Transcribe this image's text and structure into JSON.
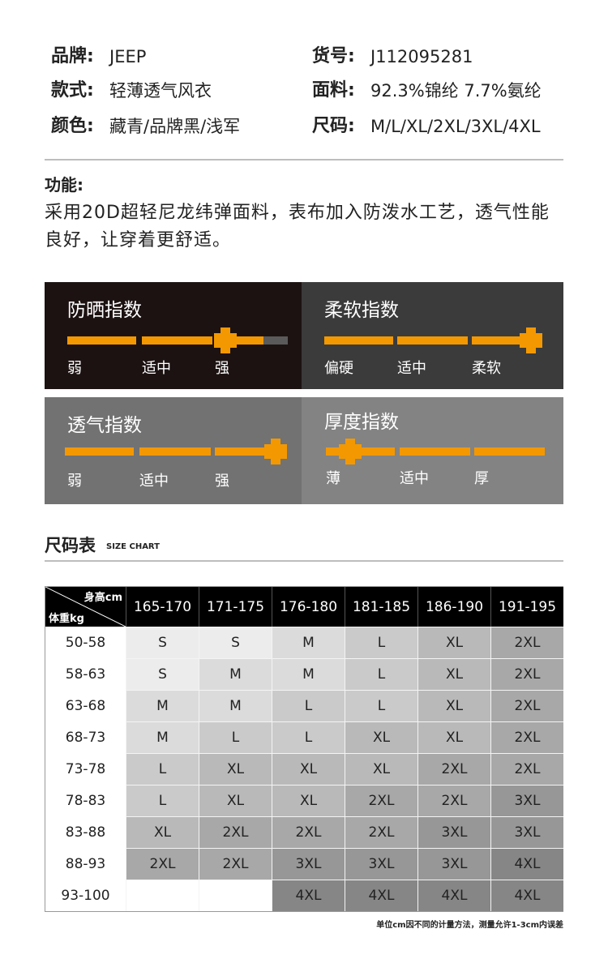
{
  "specs": [
    {
      "label": "品牌:",
      "value": "JEEP"
    },
    {
      "label": "款式:",
      "value": "轻薄透气风衣"
    },
    {
      "label": "颜色:",
      "value": "藏青/品牌黑/浅军"
    },
    {
      "label": "货号:",
      "value": "J112095281"
    },
    {
      "label": "面料:",
      "value": "92.3%锦纶  7.7%氨纶"
    },
    {
      "label": "尺码:",
      "value": "M/L/XL/2XL/3XL/4XL"
    }
  ],
  "function": {
    "title": "功能:",
    "text": "采用20D超轻尼龙纬弹面料，表布加入防泼水工艺，透气性能良好，让穿着更舒适。"
  },
  "indices": [
    {
      "title": "防晒指数",
      "labels": [
        "弱",
        "适中",
        "强"
      ]
    },
    {
      "title": "柔软指数",
      "labels": [
        "偏硬",
        "适中",
        "柔软"
      ]
    },
    {
      "title": "透气指数",
      "labels": [
        "弱",
        "适中",
        "强"
      ]
    },
    {
      "title": "厚度指数",
      "labels": [
        "薄",
        "适中",
        "厚"
      ]
    }
  ],
  "size_chart": {
    "title": "尺码表",
    "subtitle": "SIZE CHART",
    "corner": {
      "height": "身高cm",
      "weight": "体重kg"
    },
    "columns": [
      "165-170",
      "171-175",
      "176-180",
      "181-185",
      "186-190",
      "191-195"
    ],
    "rows": [
      {
        "weight": "50-58",
        "sizes": [
          "S",
          "S",
          "M",
          "L",
          "XL",
          "2XL"
        ]
      },
      {
        "weight": "58-63",
        "sizes": [
          "S",
          "M",
          "M",
          "L",
          "XL",
          "2XL"
        ]
      },
      {
        "weight": "63-68",
        "sizes": [
          "M",
          "M",
          "L",
          "L",
          "XL",
          "2XL"
        ]
      },
      {
        "weight": "68-73",
        "sizes": [
          "M",
          "L",
          "L",
          "XL",
          "XL",
          "2XL"
        ]
      },
      {
        "weight": "73-78",
        "sizes": [
          "L",
          "XL",
          "XL",
          "XL",
          "2XL",
          "2XL"
        ]
      },
      {
        "weight": "78-83",
        "sizes": [
          "L",
          "XL",
          "XL",
          "2XL",
          "2XL",
          "3XL"
        ]
      },
      {
        "weight": "83-88",
        "sizes": [
          "XL",
          "2XL",
          "2XL",
          "2XL",
          "3XL",
          "3XL"
        ]
      },
      {
        "weight": "88-93",
        "sizes": [
          "2XL",
          "2XL",
          "3XL",
          "3XL",
          "3XL",
          "4XL"
        ]
      },
      {
        "weight": "93-100",
        "sizes": [
          null,
          null,
          "4XL",
          "4XL",
          "4XL",
          "4XL"
        ]
      }
    ],
    "note": "单位cm因不同的计量方法，测量允许1-3cm内误差"
  }
}
